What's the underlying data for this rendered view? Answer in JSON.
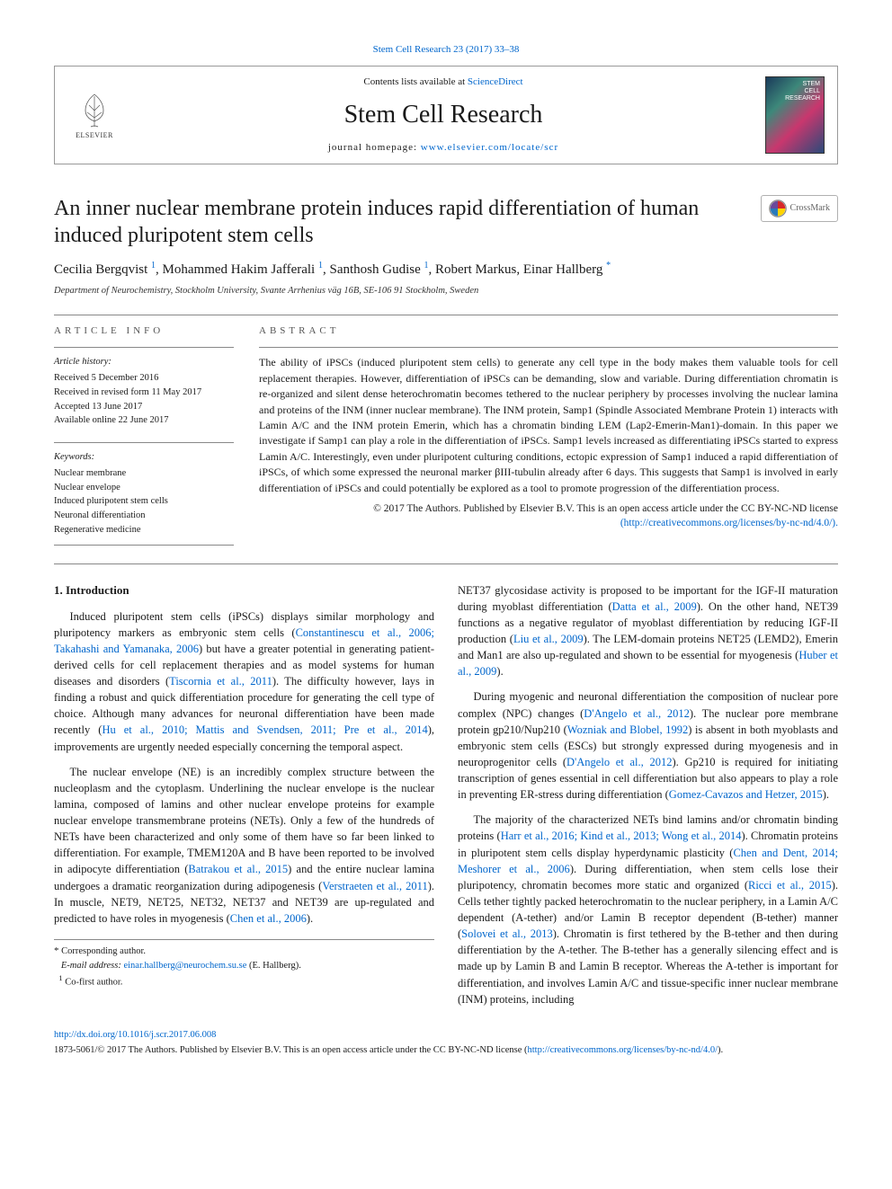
{
  "top_ref": {
    "text": "Stem Cell Research 23 (2017) 33–38",
    "href": "#"
  },
  "header": {
    "contents_prefix": "Contents lists available at ",
    "contents_link": "ScienceDirect",
    "journal_title": "Stem Cell Research",
    "homepage_prefix": "journal homepage: ",
    "homepage_link": "www.elsevier.com/locate/scr",
    "publisher": "ELSEVIER",
    "cover_label": "STEM\nCELL\nRESEARCH"
  },
  "article": {
    "title": "An inner nuclear membrane protein induces rapid differentiation of human induced pluripotent stem cells",
    "crossmark_label": "CrossMark",
    "authors_html": "Cecilia Bergqvist <sup>1</sup>, Mohammed Hakim Jafferali <sup>1</sup>, Santhosh Gudise <sup>1</sup>, Robert Markus, Einar Hallberg <sup>*</sup>",
    "affiliation": "Department of Neurochemistry, Stockholm University, Svante Arrhenius väg 16B, SE-106 91 Stockholm, Sweden"
  },
  "info": {
    "label": "article info",
    "history_label": "Article history:",
    "history": [
      "Received 5 December 2016",
      "Received in revised form 11 May 2017",
      "Accepted 13 June 2017",
      "Available online 22 June 2017"
    ],
    "keywords_label": "Keywords:",
    "keywords": [
      "Nuclear membrane",
      "Nuclear envelope",
      "Induced pluripotent stem cells",
      "Neuronal differentiation",
      "Regenerative medicine"
    ]
  },
  "abstract": {
    "label": "abstract",
    "text": "The ability of iPSCs (induced pluripotent stem cells) to generate any cell type in the body makes them valuable tools for cell replacement therapies. However, differentiation of iPSCs can be demanding, slow and variable. During differentiation chromatin is re-organized and silent dense heterochromatin becomes tethered to the nuclear periphery by processes involving the nuclear lamina and proteins of the INM (inner nuclear membrane). The INM protein, Samp1 (Spindle Associated Membrane Protein 1) interacts with Lamin A/C and the INM protein Emerin, which has a chromatin binding LEM (Lap2-Emerin-Man1)-domain. In this paper we investigate if Samp1 can play a role in the differentiation of iPSCs. Samp1 levels increased as differentiating iPSCs started to express Lamin A/C. Interestingly, even under pluripotent culturing conditions, ectopic expression of Samp1 induced a rapid differentiation of iPSCs, of which some expressed the neuronal marker βIII-tubulin already after 6 days. This suggests that Samp1 is involved in early differentiation of iPSCs and could potentially be explored as a tool to promote progression of the differentiation process.",
    "copyright": "© 2017 The Authors. Published by Elsevier B.V. This is an open access article under the CC BY-NC-ND license",
    "license_link": "(http://creativecommons.org/licenses/by-nc-nd/4.0/)."
  },
  "body": {
    "heading": "1. Introduction",
    "p1_pre": "Induced pluripotent stem cells (iPSCs) displays similar morphology and pluripotency markers as embryonic stem cells (",
    "p1_link1": "Constantinescu et al., 2006; Takahashi and Yamanaka, 2006",
    "p1_mid1": ") but have a greater potential in generating patient-derived cells for cell replacement therapies and as model systems for human diseases and disorders (",
    "p1_link2": "Tiscornia et al., 2011",
    "p1_mid2": "). The difficulty however, lays in finding a robust and quick differentiation procedure for generating the cell type of choice. Although many advances for neuronal differentiation have been made recently (",
    "p1_link3": "Hu et al., 2010; Mattis and Svendsen, 2011; Pre et al., 2014",
    "p1_post": "), improvements are urgently needed especially concerning the temporal aspect.",
    "p2_pre": "The nuclear envelope (NE) is an incredibly complex structure between the nucleoplasm and the cytoplasm. Underlining the nuclear envelope is the nuclear lamina, composed of lamins and other nuclear envelope proteins for example nuclear envelope transmembrane proteins (NETs). Only a few of the hundreds of NETs have been characterized and only some of them have so far been linked to differentiation. For example, TMEM120A and B have been reported to be involved in adipocyte differentiation (",
    "p2_link1": "Batrakou et al., 2015",
    "p2_mid1": ") and the entire nuclear lamina undergoes a dramatic reorganization during adipogenesis (",
    "p2_link2": "Verstraeten et al., 2011",
    "p2_mid2": "). In muscle, NET9, NET25, NET32, NET37 and NET39 are up-regulated and predicted to have roles in myogenesis (",
    "p2_link3": "Chen et al., 2006",
    "p2_post": ").",
    "p3_pre": "NET37 glycosidase activity is proposed to be important for the IGF-II maturation during myoblast differentiation (",
    "p3_link1": "Datta et al., 2009",
    "p3_mid1": "). On the other hand, NET39 functions as a negative regulator of myoblast differentiation by reducing IGF-II production (",
    "p3_link2": "Liu et al., 2009",
    "p3_mid2": "). The LEM-domain proteins NET25 (LEMD2), Emerin and Man1 are also up-regulated and shown to be essential for myogenesis (",
    "p3_link3": "Huber et al., 2009",
    "p3_post": ").",
    "p4_pre": "During myogenic and neuronal differentiation the composition of nuclear pore complex (NPC) changes (",
    "p4_link1": "D'Angelo et al., 2012",
    "p4_mid1": "). The nuclear pore membrane protein gp210/Nup210 (",
    "p4_link2": "Wozniak and Blobel, 1992",
    "p4_mid2": ") is absent in both myoblasts and embryonic stem cells (ESCs) but strongly expressed during myogenesis and in neuroprogenitor cells (",
    "p4_link3": "D'Angelo et al., 2012",
    "p4_mid3": "). Gp210 is required for initiating transcription of genes essential in cell differentiation but also appears to play a role in preventing ER-stress during differentiation (",
    "p4_link4": "Gomez-Cavazos and Hetzer, 2015",
    "p4_post": ").",
    "p5_pre": "The majority of the characterized NETs bind lamins and/or chromatin binding proteins (",
    "p5_link1": "Harr et al., 2016; Kind et al., 2013; Wong et al., 2014",
    "p5_mid1": "). Chromatin proteins in pluripotent stem cells display hyperdynamic plasticity (",
    "p5_link2": "Chen and Dent, 2014; Meshorer et al., 2006",
    "p5_mid2": "). During differentiation, when stem cells lose their pluripotency, chromatin becomes more static and organized (",
    "p5_link3": "Ricci et al., 2015",
    "p5_mid3": "). Cells tether tightly packed heterochromatin to the nuclear periphery, in a Lamin A/C dependent (A-tether) and/or Lamin B receptor dependent (B-tether) manner (",
    "p5_link4": "Solovei et al., 2013",
    "p5_post": "). Chromatin is first tethered by the B-tether and then during differentiation by the A-tether. The B-tether has a generally silencing effect and is made up by Lamin B and Lamin B receptor. Whereas the A-tether is important for differentiation, and involves Lamin A/C and tissue-specific inner nuclear membrane (INM) proteins, including"
  },
  "footnotes": {
    "corr": "Corresponding author.",
    "email_label": "E-mail address:",
    "email": "einar.hallberg@neurochem.su.se",
    "email_name": "(E. Hallberg).",
    "cofirst": "Co-first author."
  },
  "footer": {
    "doi": "http://dx.doi.org/10.1016/j.scr.2017.06.008",
    "issn_line_pre": "1873-5061/© 2017 The Authors. Published by Elsevier B.V. This is an open access article under the CC BY-NC-ND license (",
    "issn_link": "http://creativecommons.org/licenses/by-nc-nd/4.0/",
    "issn_line_post": ")."
  },
  "colors": {
    "link": "#0066cc",
    "text": "#1a1a1a",
    "rule": "#888888",
    "elsevier_orange": "#ff6a00"
  }
}
